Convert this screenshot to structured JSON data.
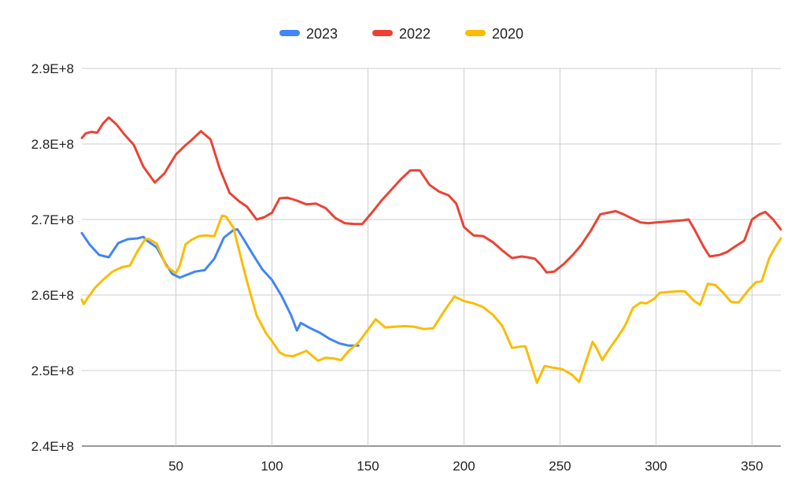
{
  "chart_data": {
    "type": "line",
    "title": "",
    "xlabel": "",
    "ylabel": "",
    "xlim": [
      1,
      365
    ],
    "ylim": [
      240000000,
      290000000
    ],
    "x_ticks": [
      50,
      100,
      150,
      200,
      250,
      300,
      350
    ],
    "y_ticks": [
      {
        "value": 240000000,
        "label": "2.4E+8"
      },
      {
        "value": 250000000,
        "label": "2.5E+8"
      },
      {
        "value": 260000000,
        "label": "2.6E+8"
      },
      {
        "value": 270000000,
        "label": "2.7E+8"
      },
      {
        "value": 280000000,
        "label": "2.8E+8"
      },
      {
        "value": 290000000,
        "label": "2.9E+8"
      }
    ],
    "grid": true,
    "legend_position": "top",
    "series": [
      {
        "name": "2023",
        "color": "#4285f4",
        "x": [
          1,
          5,
          10,
          15,
          20,
          25,
          30,
          33,
          35,
          40,
          45,
          48,
          52,
          55,
          60,
          65,
          70,
          75,
          80,
          82,
          85,
          90,
          95,
          100,
          105,
          110,
          113,
          115,
          120,
          125,
          130,
          135,
          140,
          145
        ],
        "y": [
          268200000,
          266700000,
          265300000,
          265000000,
          266900000,
          267400000,
          267500000,
          267700000,
          267200000,
          266300000,
          264000000,
          262800000,
          262300000,
          262600000,
          263100000,
          263300000,
          264800000,
          267600000,
          268600000,
          268700000,
          267500000,
          265400000,
          263400000,
          262000000,
          259900000,
          257300000,
          255300000,
          256300000,
          255600000,
          255000000,
          254200000,
          253600000,
          253300000,
          253300000
        ]
      },
      {
        "name": "2022",
        "color": "#ea4335",
        "x": [
          1,
          3,
          6,
          9,
          12,
          15,
          19,
          23,
          28,
          33,
          39,
          44,
          50,
          54,
          58,
          63,
          68,
          73,
          78,
          83,
          87,
          92,
          96,
          100,
          104,
          108,
          113,
          118,
          123,
          128,
          133,
          138,
          143,
          147,
          152,
          157,
          162,
          167,
          172,
          177,
          182,
          187,
          192,
          196,
          200,
          205,
          210,
          215,
          220,
          225,
          230,
          233,
          237,
          240,
          243,
          247,
          252,
          257,
          261,
          266,
          271,
          275,
          279,
          283,
          287,
          292,
          296,
          300,
          305,
          310,
          314,
          317,
          320,
          325,
          328,
          333,
          337,
          341,
          346,
          350,
          354,
          357,
          361,
          365
        ],
        "y": [
          280800000,
          281400000,
          281600000,
          281500000,
          282700000,
          283500000,
          282600000,
          281300000,
          279900000,
          277000000,
          274900000,
          276100000,
          278600000,
          279600000,
          280500000,
          281700000,
          280600000,
          276600000,
          273500000,
          272400000,
          271700000,
          270000000,
          270300000,
          270900000,
          272800000,
          272900000,
          272500000,
          272000000,
          272100000,
          271500000,
          270200000,
          269500000,
          269400000,
          269400000,
          270900000,
          272500000,
          273900000,
          275300000,
          276500000,
          276500000,
          274600000,
          273700000,
          273200000,
          272100000,
          269000000,
          267900000,
          267800000,
          267000000,
          265900000,
          264900000,
          265100000,
          265000000,
          264800000,
          264000000,
          263000000,
          263100000,
          264100000,
          265400000,
          266600000,
          268500000,
          270700000,
          270900000,
          271100000,
          270700000,
          270200000,
          269600000,
          269500000,
          269600000,
          269700000,
          269800000,
          269900000,
          270000000,
          268700000,
          266300000,
          265100000,
          265300000,
          265700000,
          266400000,
          267200000,
          270000000,
          270700000,
          271000000,
          270000000,
          268700000
        ]
      },
      {
        "name": "2020",
        "color": "#fbbc04",
        "x": [
          1,
          2,
          4,
          8,
          12,
          17,
          22,
          26,
          30,
          34,
          36,
          40,
          45,
          50,
          52,
          55,
          58,
          62,
          65,
          70,
          74,
          76,
          80,
          83,
          87,
          92,
          97,
          100,
          104,
          107,
          111,
          114,
          118,
          124,
          128,
          132,
          136,
          140,
          145,
          150,
          154,
          159,
          164,
          169,
          174,
          179,
          184,
          190,
          195,
          200,
          205,
          210,
          215,
          220,
          225,
          230,
          232,
          235,
          238,
          242,
          246,
          251,
          256,
          260,
          263,
          267,
          269,
          272,
          276,
          280,
          284,
          288,
          292,
          295,
          299,
          302,
          306,
          311,
          315,
          320,
          323,
          327,
          331,
          335,
          339,
          343,
          348,
          352,
          355,
          359,
          362,
          365
        ],
        "y": [
          259400000,
          258800000,
          259600000,
          261000000,
          262000000,
          263100000,
          263700000,
          263900000,
          265800000,
          267400000,
          267400000,
          266800000,
          263800000,
          262900000,
          263900000,
          266700000,
          267300000,
          267800000,
          267900000,
          267800000,
          270500000,
          270400000,
          268900000,
          265800000,
          261800000,
          257300000,
          254900000,
          253900000,
          252400000,
          252000000,
          251900000,
          252200000,
          252600000,
          251300000,
          251700000,
          251600000,
          251400000,
          252600000,
          253700000,
          255400000,
          256800000,
          255700000,
          255800000,
          255900000,
          255800000,
          255500000,
          255600000,
          258000000,
          259800000,
          259200000,
          258900000,
          258400000,
          257400000,
          255900000,
          253000000,
          253200000,
          253200000,
          250800000,
          248400000,
          250600000,
          250400000,
          250200000,
          249500000,
          248500000,
          250800000,
          253800000,
          253000000,
          251400000,
          253000000,
          254400000,
          256000000,
          258300000,
          259000000,
          258900000,
          259500000,
          260300000,
          260400000,
          260500000,
          260500000,
          259200000,
          258700000,
          261500000,
          261300000,
          260300000,
          259100000,
          259000000,
          260600000,
          261700000,
          261800000,
          264900000,
          266300000,
          267500000
        ]
      }
    ]
  }
}
